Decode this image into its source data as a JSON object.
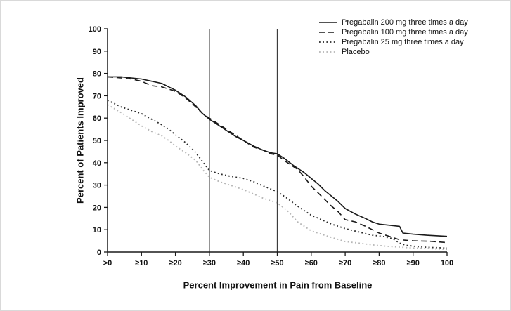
{
  "figure": {
    "y_axis_title": "Percent of Patients Improved",
    "x_axis_title": "Percent Improvement in Pain from Baseline"
  },
  "colors": {
    "axis": "#1a1a1a",
    "reference_line": "#3c3c3c",
    "dark_series": "#1a1a1a",
    "mid_series": "#2a2a2a",
    "placebo_series": "#b5b5b5"
  },
  "chart_data": {
    "type": "line",
    "title": "",
    "xlabel": "Percent Improvement in Pain from Baseline",
    "ylabel": "Percent of Patients Improved",
    "xlim": [
      0,
      100
    ],
    "ylim": [
      0,
      100
    ],
    "grid": false,
    "legend_position": "top-right",
    "x_tick_values": [
      0,
      10,
      20,
      30,
      40,
      50,
      60,
      70,
      80,
      90,
      100
    ],
    "x_tick_labels": [
      ">0",
      "≥10",
      "≥20",
      "≥30",
      "≥40",
      "≥50",
      "≥60",
      "≥70",
      "≥80",
      "≥90",
      "100"
    ],
    "y_tick_values": [
      0,
      10,
      20,
      30,
      40,
      50,
      60,
      70,
      80,
      90,
      100
    ],
    "reference_lines_x": [
      30,
      50
    ],
    "series": [
      {
        "name": "Pregabalin 200 mg three times a day",
        "line_style": "solid",
        "color": "#1a1a1a",
        "points": [
          [
            0,
            78.5
          ],
          [
            4,
            78.5
          ],
          [
            7,
            78
          ],
          [
            10,
            77.5
          ],
          [
            13,
            76.5
          ],
          [
            16,
            75.5
          ],
          [
            18,
            74
          ],
          [
            20,
            72.5
          ],
          [
            23,
            69.5
          ],
          [
            26,
            65.5
          ],
          [
            28,
            62
          ],
          [
            30,
            59.5
          ],
          [
            33,
            56.5
          ],
          [
            36,
            53.5
          ],
          [
            38,
            51.5
          ],
          [
            40,
            50
          ],
          [
            43,
            47.5
          ],
          [
            46,
            45.5
          ],
          [
            48,
            44.5
          ],
          [
            50,
            44
          ],
          [
            52,
            42
          ],
          [
            55,
            38.5
          ],
          [
            58,
            35.5
          ],
          [
            60,
            33
          ],
          [
            62,
            30.5
          ],
          [
            64,
            27.5
          ],
          [
            66,
            25
          ],
          [
            68,
            22.5
          ],
          [
            70,
            19.5
          ],
          [
            73,
            17
          ],
          [
            76,
            15
          ],
          [
            78,
            13.5
          ],
          [
            80,
            12.5
          ],
          [
            83,
            12
          ],
          [
            86,
            11.5
          ],
          [
            87,
            8.5
          ],
          [
            90,
            8
          ],
          [
            94,
            7.5
          ],
          [
            100,
            7
          ]
        ]
      },
      {
        "name": "Pregabalin 100 mg three times a day",
        "line_style": "dashed",
        "color": "#1a1a1a",
        "points": [
          [
            0,
            78.5
          ],
          [
            4,
            78
          ],
          [
            7,
            77.5
          ],
          [
            10,
            76.5
          ],
          [
            13,
            74.5
          ],
          [
            16,
            74
          ],
          [
            18,
            73
          ],
          [
            20,
            72
          ],
          [
            23,
            69
          ],
          [
            26,
            65
          ],
          [
            28,
            62
          ],
          [
            30,
            60
          ],
          [
            33,
            57
          ],
          [
            36,
            54
          ],
          [
            38,
            52
          ],
          [
            40,
            50
          ],
          [
            43,
            47
          ],
          [
            46,
            45.5
          ],
          [
            48,
            44
          ],
          [
            50,
            43.5
          ],
          [
            52,
            41
          ],
          [
            54,
            39
          ],
          [
            56,
            37
          ],
          [
            58,
            33.5
          ],
          [
            60,
            29.5
          ],
          [
            62,
            26.5
          ],
          [
            64,
            23.5
          ],
          [
            66,
            20.5
          ],
          [
            68,
            18
          ],
          [
            70,
            14.5
          ],
          [
            73,
            13.5
          ],
          [
            76,
            11.5
          ],
          [
            78,
            10
          ],
          [
            80,
            8.5
          ],
          [
            83,
            7
          ],
          [
            86,
            5.5
          ],
          [
            90,
            5
          ],
          [
            95,
            4.8
          ],
          [
            100,
            4.2
          ]
        ]
      },
      {
        "name": "Pregabalin 25 mg three times a day",
        "line_style": "dotted",
        "color": "#2a2a2a",
        "points": [
          [
            0,
            68
          ],
          [
            4,
            65
          ],
          [
            7,
            63.5
          ],
          [
            10,
            62
          ],
          [
            13,
            59.5
          ],
          [
            16,
            57
          ],
          [
            18,
            55
          ],
          [
            20,
            52.5
          ],
          [
            23,
            49
          ],
          [
            26,
            44.5
          ],
          [
            28,
            40.5
          ],
          [
            30,
            36.5
          ],
          [
            33,
            35
          ],
          [
            36,
            34
          ],
          [
            40,
            33
          ],
          [
            43,
            31.5
          ],
          [
            46,
            29.5
          ],
          [
            50,
            27
          ],
          [
            53,
            24
          ],
          [
            56,
            20.5
          ],
          [
            58,
            18.5
          ],
          [
            60,
            16.5
          ],
          [
            63,
            14.5
          ],
          [
            66,
            12.5
          ],
          [
            70,
            10.5
          ],
          [
            74,
            9
          ],
          [
            78,
            7.5
          ],
          [
            81,
            7
          ],
          [
            84,
            6
          ],
          [
            86,
            4
          ],
          [
            88,
            3
          ],
          [
            92,
            2.3
          ],
          [
            96,
            2
          ],
          [
            100,
            1.8
          ]
        ]
      },
      {
        "name": "Placebo",
        "line_style": "dotted-light",
        "color": "#b5b5b5",
        "points": [
          [
            0,
            66
          ],
          [
            4,
            62.5
          ],
          [
            7,
            59.5
          ],
          [
            10,
            56.5
          ],
          [
            13,
            54
          ],
          [
            16,
            52
          ],
          [
            18,
            50
          ],
          [
            20,
            47.5
          ],
          [
            23,
            44.5
          ],
          [
            26,
            41
          ],
          [
            28,
            37
          ],
          [
            30,
            33.5
          ],
          [
            33,
            31.5
          ],
          [
            36,
            30
          ],
          [
            40,
            28
          ],
          [
            43,
            26
          ],
          [
            46,
            24
          ],
          [
            50,
            22
          ],
          [
            53,
            18.5
          ],
          [
            56,
            13.5
          ],
          [
            58,
            11.5
          ],
          [
            60,
            9.5
          ],
          [
            63,
            8
          ],
          [
            66,
            6.5
          ],
          [
            70,
            4.7
          ],
          [
            74,
            4
          ],
          [
            78,
            3.2
          ],
          [
            82,
            2.6
          ],
          [
            86,
            2.2
          ],
          [
            90,
            1.8
          ],
          [
            95,
            1.5
          ],
          [
            100,
            1.2
          ]
        ]
      }
    ]
  }
}
